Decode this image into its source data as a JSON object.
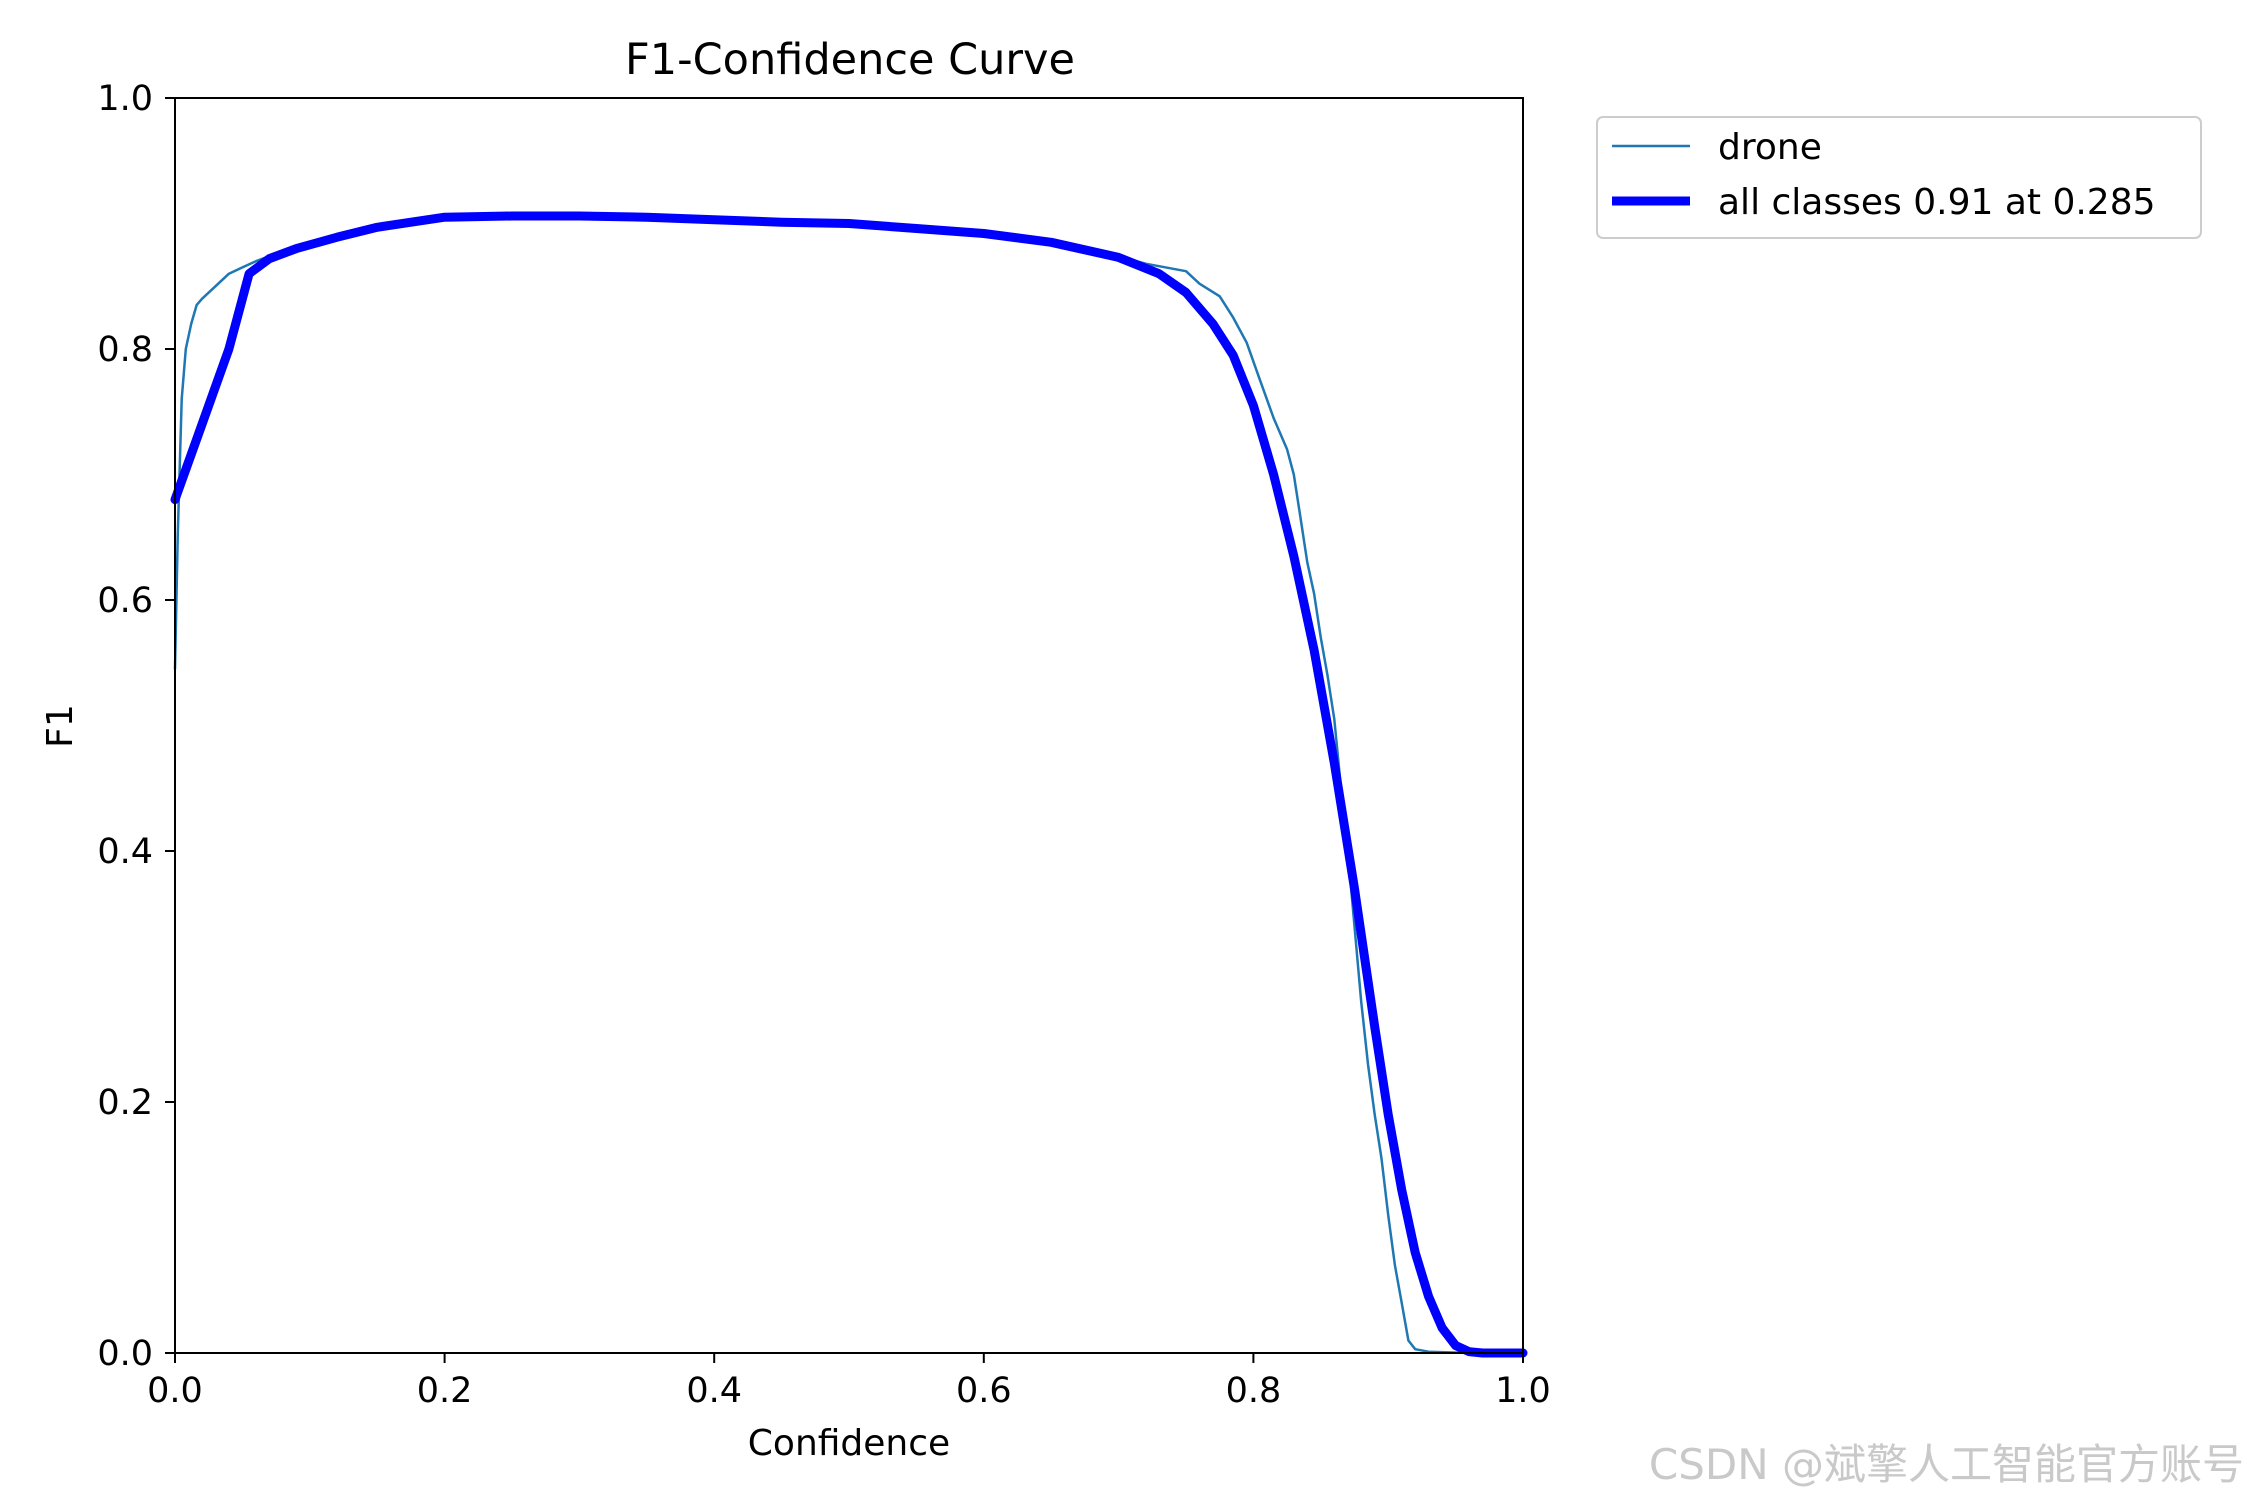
{
  "chart_data": {
    "type": "line",
    "title": "F1-Confidence Curve",
    "xlabel": "Confidence",
    "ylabel": "F1",
    "xlim": [
      0,
      1
    ],
    "ylim": [
      0,
      1
    ],
    "xticks": [
      "0.0",
      "0.2",
      "0.4",
      "0.6",
      "0.8",
      "1.0"
    ],
    "yticks": [
      "0.0",
      "0.2",
      "0.4",
      "0.6",
      "0.8",
      "1.0"
    ],
    "grid": false,
    "legend": "outside-top-right",
    "series": [
      {
        "name": "drone",
        "color": "#1f77b4",
        "style": "thin",
        "points": [
          [
            0.0,
            0.545
          ],
          [
            0.002,
            0.65
          ],
          [
            0.005,
            0.76
          ],
          [
            0.008,
            0.8
          ],
          [
            0.012,
            0.82
          ],
          [
            0.016,
            0.835
          ],
          [
            0.02,
            0.84
          ],
          [
            0.03,
            0.85
          ],
          [
            0.04,
            0.86
          ],
          [
            0.05,
            0.865
          ],
          [
            0.06,
            0.87
          ],
          [
            0.08,
            0.878
          ],
          [
            0.1,
            0.885
          ],
          [
            0.13,
            0.893
          ],
          [
            0.16,
            0.9
          ],
          [
            0.185,
            0.904
          ],
          [
            0.2,
            0.905
          ],
          [
            0.25,
            0.906
          ],
          [
            0.3,
            0.906
          ],
          [
            0.35,
            0.905
          ],
          [
            0.4,
            0.903
          ],
          [
            0.45,
            0.901
          ],
          [
            0.5,
            0.9
          ],
          [
            0.55,
            0.896
          ],
          [
            0.6,
            0.892
          ],
          [
            0.625,
            0.889
          ],
          [
            0.65,
            0.885
          ],
          [
            0.7,
            0.874
          ],
          [
            0.72,
            0.868
          ],
          [
            0.74,
            0.864
          ],
          [
            0.75,
            0.862
          ],
          [
            0.76,
            0.852
          ],
          [
            0.775,
            0.842
          ],
          [
            0.785,
            0.825
          ],
          [
            0.795,
            0.805
          ],
          [
            0.805,
            0.775
          ],
          [
            0.815,
            0.745
          ],
          [
            0.825,
            0.72
          ],
          [
            0.83,
            0.7
          ],
          [
            0.835,
            0.665
          ],
          [
            0.84,
            0.63
          ],
          [
            0.845,
            0.605
          ],
          [
            0.85,
            0.57
          ],
          [
            0.855,
            0.54
          ],
          [
            0.86,
            0.505
          ],
          [
            0.865,
            0.45
          ],
          [
            0.87,
            0.4
          ],
          [
            0.875,
            0.34
          ],
          [
            0.88,
            0.28
          ],
          [
            0.885,
            0.23
          ],
          [
            0.89,
            0.19
          ],
          [
            0.895,
            0.155
          ],
          [
            0.9,
            0.11
          ],
          [
            0.905,
            0.07
          ],
          [
            0.91,
            0.04
          ],
          [
            0.915,
            0.01
          ],
          [
            0.92,
            0.003
          ],
          [
            0.93,
            0.001
          ],
          [
            0.96,
            0.0
          ],
          [
            1.0,
            0.0
          ]
        ]
      },
      {
        "name": "all classes 0.91 at 0.285",
        "color": "#0000ff",
        "style": "thick",
        "points": [
          [
            0.0,
            0.68
          ],
          [
            0.02,
            0.74
          ],
          [
            0.04,
            0.8
          ],
          [
            0.055,
            0.86
          ],
          [
            0.07,
            0.872
          ],
          [
            0.09,
            0.88
          ],
          [
            0.12,
            0.889
          ],
          [
            0.15,
            0.897
          ],
          [
            0.2,
            0.905
          ],
          [
            0.25,
            0.906
          ],
          [
            0.3,
            0.906
          ],
          [
            0.35,
            0.905
          ],
          [
            0.4,
            0.903
          ],
          [
            0.45,
            0.901
          ],
          [
            0.5,
            0.9
          ],
          [
            0.55,
            0.896
          ],
          [
            0.6,
            0.892
          ],
          [
            0.65,
            0.885
          ],
          [
            0.7,
            0.873
          ],
          [
            0.73,
            0.86
          ],
          [
            0.75,
            0.845
          ],
          [
            0.77,
            0.82
          ],
          [
            0.785,
            0.795
          ],
          [
            0.8,
            0.755
          ],
          [
            0.815,
            0.7
          ],
          [
            0.83,
            0.635
          ],
          [
            0.845,
            0.56
          ],
          [
            0.86,
            0.47
          ],
          [
            0.875,
            0.37
          ],
          [
            0.89,
            0.26
          ],
          [
            0.9,
            0.19
          ],
          [
            0.91,
            0.13
          ],
          [
            0.92,
            0.08
          ],
          [
            0.93,
            0.045
          ],
          [
            0.94,
            0.02
          ],
          [
            0.95,
            0.006
          ],
          [
            0.96,
            0.001
          ],
          [
            0.97,
            0.0
          ],
          [
            1.0,
            0.0
          ]
        ]
      }
    ]
  },
  "watermark": "CSDN @斌擎人工智能官方账号"
}
